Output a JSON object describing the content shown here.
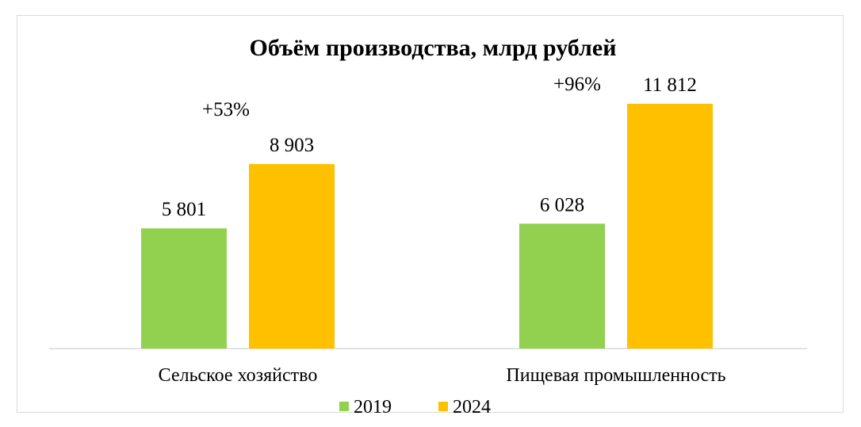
{
  "chart_data": {
    "type": "bar",
    "title": "Объём производства, млрд рублей",
    "categories": [
      "Сельское хозяйство",
      "Пищевая промышленность"
    ],
    "series": [
      {
        "name": "2019",
        "color": "#92d050",
        "values": [
          5801,
          6028
        ],
        "labels": [
          "5 801",
          "6 028"
        ]
      },
      {
        "name": "2024",
        "color": "#ffc000",
        "values": [
          8903,
          11812
        ],
        "labels": [
          "8 903",
          "11 812"
        ]
      }
    ],
    "annotations": [
      "+53%",
      "+96%"
    ],
    "legend": "bottom",
    "grid": false,
    "ylim": [
      0,
      13800
    ]
  }
}
